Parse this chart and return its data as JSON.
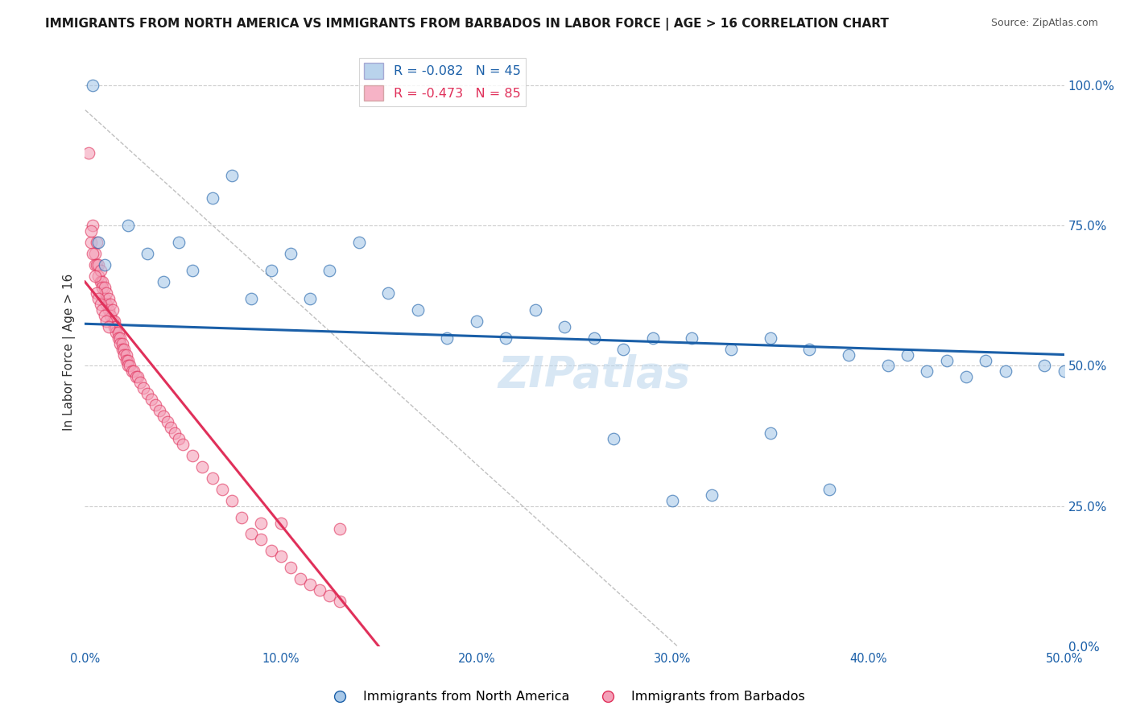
{
  "title": "IMMIGRANTS FROM NORTH AMERICA VS IMMIGRANTS FROM BARBADOS IN LABOR FORCE | AGE > 16 CORRELATION CHART",
  "source": "Source: ZipAtlas.com",
  "ylabel": "In Labor Force | Age > 16",
  "xlim": [
    0.0,
    0.5
  ],
  "ylim": [
    0.0,
    1.05
  ],
  "xticks": [
    0.0,
    0.1,
    0.2,
    0.3,
    0.4,
    0.5
  ],
  "xtick_labels": [
    "0.0%",
    "10.0%",
    "20.0%",
    "30.0%",
    "40.0%",
    "50.0%"
  ],
  "ytick_labels_right": [
    "0.0%",
    "25.0%",
    "50.0%",
    "75.0%",
    "100.0%"
  ],
  "color_blue": "#a8c8e8",
  "color_pink": "#f4a0b8",
  "trendline_blue_color": "#1a5fa8",
  "trendline_pink_color": "#e0305a",
  "watermark": "ZIPatlas",
  "background_color": "#ffffff",
  "grid_color": "#cccccc",
  "na_R": -0.082,
  "na_N": 45,
  "bb_R": -0.473,
  "bb_N": 85,
  "north_america_x": [
    0.004,
    0.007,
    0.01,
    0.022,
    0.032,
    0.04,
    0.048,
    0.055,
    0.065,
    0.075,
    0.085,
    0.095,
    0.105,
    0.115,
    0.125,
    0.14,
    0.155,
    0.17,
    0.185,
    0.2,
    0.215,
    0.23,
    0.245,
    0.26,
    0.275,
    0.29,
    0.31,
    0.33,
    0.35,
    0.37,
    0.39,
    0.41,
    0.43,
    0.45,
    0.47,
    0.49,
    0.5,
    0.46,
    0.44,
    0.42,
    0.38,
    0.35,
    0.32,
    0.3,
    0.27
  ],
  "north_america_y": [
    1.0,
    0.72,
    0.68,
    0.75,
    0.7,
    0.65,
    0.72,
    0.67,
    0.8,
    0.84,
    0.62,
    0.67,
    0.7,
    0.62,
    0.67,
    0.72,
    0.63,
    0.6,
    0.55,
    0.58,
    0.55,
    0.6,
    0.57,
    0.55,
    0.53,
    0.55,
    0.55,
    0.53,
    0.55,
    0.53,
    0.52,
    0.5,
    0.49,
    0.48,
    0.49,
    0.5,
    0.49,
    0.51,
    0.51,
    0.52,
    0.28,
    0.38,
    0.27,
    0.26,
    0.37
  ],
  "barbados_x": [
    0.002,
    0.003,
    0.004,
    0.005,
    0.005,
    0.006,
    0.006,
    0.007,
    0.007,
    0.008,
    0.008,
    0.009,
    0.009,
    0.01,
    0.01,
    0.011,
    0.011,
    0.012,
    0.012,
    0.013,
    0.013,
    0.014,
    0.014,
    0.015,
    0.015,
    0.016,
    0.016,
    0.017,
    0.017,
    0.018,
    0.018,
    0.019,
    0.019,
    0.02,
    0.02,
    0.021,
    0.021,
    0.022,
    0.022,
    0.023,
    0.024,
    0.025,
    0.026,
    0.027,
    0.028,
    0.03,
    0.032,
    0.034,
    0.036,
    0.038,
    0.04,
    0.042,
    0.044,
    0.046,
    0.048,
    0.05,
    0.055,
    0.06,
    0.065,
    0.07,
    0.075,
    0.08,
    0.085,
    0.09,
    0.095,
    0.1,
    0.105,
    0.11,
    0.115,
    0.12,
    0.125,
    0.13,
    0.003,
    0.004,
    0.005,
    0.006,
    0.007,
    0.008,
    0.009,
    0.01,
    0.011,
    0.012,
    0.09,
    0.1,
    0.13
  ],
  "barbados_y": [
    0.88,
    0.72,
    0.75,
    0.7,
    0.68,
    0.72,
    0.68,
    0.68,
    0.66,
    0.67,
    0.65,
    0.65,
    0.64,
    0.64,
    0.62,
    0.63,
    0.61,
    0.62,
    0.6,
    0.61,
    0.59,
    0.6,
    0.58,
    0.58,
    0.57,
    0.57,
    0.56,
    0.56,
    0.55,
    0.55,
    0.54,
    0.54,
    0.53,
    0.53,
    0.52,
    0.52,
    0.51,
    0.51,
    0.5,
    0.5,
    0.49,
    0.49,
    0.48,
    0.48,
    0.47,
    0.46,
    0.45,
    0.44,
    0.43,
    0.42,
    0.41,
    0.4,
    0.39,
    0.38,
    0.37,
    0.36,
    0.34,
    0.32,
    0.3,
    0.28,
    0.26,
    0.23,
    0.2,
    0.19,
    0.17,
    0.16,
    0.14,
    0.12,
    0.11,
    0.1,
    0.09,
    0.08,
    0.74,
    0.7,
    0.66,
    0.63,
    0.62,
    0.61,
    0.6,
    0.59,
    0.58,
    0.57,
    0.22,
    0.22,
    0.21
  ]
}
